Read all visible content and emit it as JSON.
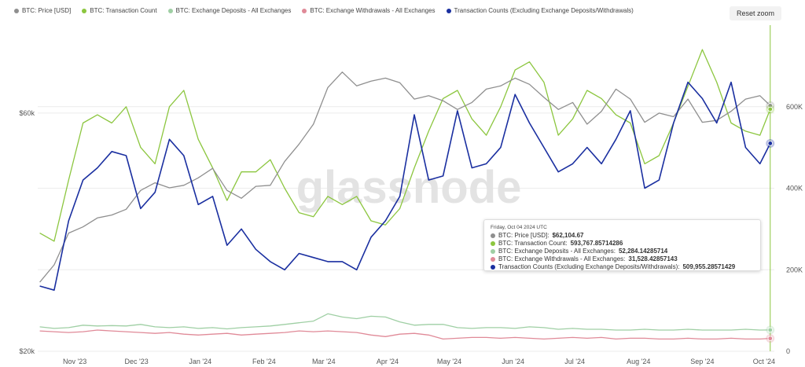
{
  "legend": [
    {
      "label": "BTC: Price [USD]",
      "color": "#8f8f8f"
    },
    {
      "label": "BTC: Transaction Count",
      "color": "#8cc63f"
    },
    {
      "label": "BTC: Exchange Deposits - All Exchanges",
      "color": "#9fcfa4"
    },
    {
      "label": "BTC: Exchange Withdrawals - All Exchanges",
      "color": "#e08a98"
    },
    {
      "label": "Transaction Counts (Excluding Exchange Deposits/Withdrawals)",
      "color": "#1a2fa0"
    }
  ],
  "reset_zoom": "Reset zoom",
  "watermark": "glassnode",
  "tooltip": {
    "date": "Friday, Oct 04 2024 UTC",
    "rows": [
      {
        "label": "BTC: Price [USD]:",
        "value": "$62,104.67",
        "color": "#8f8f8f"
      },
      {
        "label": "BTC: Transaction Count:",
        "value": "593,767.85714286",
        "color": "#8cc63f"
      },
      {
        "label": "BTC: Exchange Deposits - All Exchanges:",
        "value": "52,284.14285714",
        "color": "#9fcfa4"
      },
      {
        "label": "BTC: Exchange Withdrawals - All Exchanges:",
        "value": "31,528.42857143",
        "color": "#e08a98"
      },
      {
        "label": "Transaction Counts (Excluding Exchange Deposits/Withdrawals):",
        "value": "509,955.28571429",
        "color": "#1a2fa0"
      }
    ]
  },
  "chart_data": {
    "type": "line",
    "x": [
      "2023-10-15",
      "2023-10-22",
      "2023-10-29",
      "2023-11-05",
      "2023-11-12",
      "2023-11-19",
      "2023-11-26",
      "2023-12-03",
      "2023-12-10",
      "2023-12-17",
      "2023-12-24",
      "2023-12-31",
      "2024-01-07",
      "2024-01-14",
      "2024-01-21",
      "2024-01-28",
      "2024-02-04",
      "2024-02-11",
      "2024-02-18",
      "2024-02-25",
      "2024-03-03",
      "2024-03-10",
      "2024-03-17",
      "2024-03-24",
      "2024-03-31",
      "2024-04-07",
      "2024-04-14",
      "2024-04-21",
      "2024-04-28",
      "2024-05-05",
      "2024-05-12",
      "2024-05-19",
      "2024-05-26",
      "2024-06-02",
      "2024-06-09",
      "2024-06-16",
      "2024-06-23",
      "2024-06-30",
      "2024-07-07",
      "2024-07-14",
      "2024-07-21",
      "2024-07-28",
      "2024-08-04",
      "2024-08-11",
      "2024-08-18",
      "2024-08-25",
      "2024-09-01",
      "2024-09-08",
      "2024-09-15",
      "2024-09-22",
      "2024-09-29",
      "2024-10-04"
    ],
    "x_ticks": [
      "Nov '23",
      "Dec '23",
      "Jan '24",
      "Feb '24",
      "Mar '24",
      "Apr '24",
      "May '24",
      "Jun '24",
      "Jul '24",
      "Aug '24",
      "Sep '24",
      "Oct '24"
    ],
    "y_left": {
      "ticks": [
        "$20k",
        "$60k"
      ],
      "scale": "log",
      "range": [
        20000,
        90000
      ]
    },
    "y_right": {
      "ticks": [
        "0",
        "200K",
        "400K",
        "600K"
      ],
      "range": [
        0,
        800000
      ]
    },
    "grid": true,
    "legend_position": "top-left",
    "series": [
      {
        "name": "BTC: Price [USD]",
        "axis": "left",
        "color": "#8f8f8f",
        "values": [
          27500,
          29800,
          34500,
          35500,
          37000,
          37500,
          38500,
          42000,
          43500,
          42500,
          43000,
          44500,
          46500,
          42000,
          40500,
          42800,
          43000,
          48000,
          52000,
          57000,
          67500,
          72500,
          68000,
          69500,
          70500,
          69000,
          64000,
          65000,
          63500,
          61000,
          63000,
          67000,
          68000,
          70500,
          68500,
          64500,
          61000,
          63000,
          57000,
          60500,
          67000,
          64000,
          57500,
          60000,
          59000,
          64000,
          57500,
          58000,
          60500,
          64000,
          65000,
          62104.67
        ]
      },
      {
        "name": "BTC: Transaction Count",
        "axis": "right",
        "color": "#8cc63f",
        "values": [
          290000,
          270000,
          420000,
          560000,
          580000,
          560000,
          600000,
          500000,
          460000,
          600000,
          640000,
          520000,
          450000,
          370000,
          440000,
          440000,
          470000,
          400000,
          340000,
          330000,
          380000,
          360000,
          380000,
          320000,
          310000,
          350000,
          450000,
          540000,
          620000,
          640000,
          570000,
          530000,
          600000,
          690000,
          710000,
          660000,
          530000,
          570000,
          640000,
          620000,
          580000,
          560000,
          460000,
          480000,
          560000,
          650000,
          740000,
          660000,
          560000,
          540000,
          530000,
          593767.86
        ]
      },
      {
        "name": "BTC: Exchange Deposits - All Exchanges",
        "axis": "right",
        "color": "#9fcfa4",
        "values": [
          60000,
          56000,
          58000,
          64000,
          62000,
          63000,
          62000,
          66000,
          60000,
          58000,
          60000,
          56000,
          58000,
          55000,
          58000,
          60000,
          62000,
          66000,
          70000,
          74000,
          92000,
          84000,
          80000,
          86000,
          84000,
          72000,
          64000,
          66000,
          66000,
          58000,
          56000,
          58000,
          58000,
          56000,
          60000,
          58000,
          54000,
          56000,
          54000,
          54000,
          52000,
          52000,
          54000,
          52000,
          52000,
          54000,
          52000,
          52000,
          52000,
          54000,
          52000,
          52284.14
        ]
      },
      {
        "name": "BTC: Exchange Withdrawals - All Exchanges",
        "axis": "right",
        "color": "#e08a98",
        "values": [
          50000,
          48000,
          46000,
          48000,
          52000,
          50000,
          48000,
          46000,
          44000,
          46000,
          42000,
          40000,
          42000,
          44000,
          40000,
          42000,
          44000,
          46000,
          50000,
          48000,
          50000,
          48000,
          46000,
          40000,
          36000,
          42000,
          44000,
          40000,
          30000,
          32000,
          34000,
          34000,
          32000,
          34000,
          32000,
          30000,
          32000,
          34000,
          32000,
          34000,
          30000,
          32000,
          32000,
          30000,
          30000,
          32000,
          30000,
          30000,
          32000,
          30000,
          30000,
          31528.43
        ]
      },
      {
        "name": "Transaction Counts (Excluding Exchange Deposits/Withdrawals)",
        "axis": "right",
        "color": "#1a2fa0",
        "values": [
          160000,
          150000,
          320000,
          420000,
          450000,
          490000,
          480000,
          350000,
          390000,
          520000,
          480000,
          360000,
          380000,
          260000,
          300000,
          250000,
          220000,
          200000,
          240000,
          230000,
          220000,
          220000,
          200000,
          280000,
          320000,
          380000,
          580000,
          420000,
          430000,
          590000,
          450000,
          460000,
          500000,
          630000,
          560000,
          500000,
          440000,
          460000,
          500000,
          460000,
          520000,
          590000,
          400000,
          420000,
          560000,
          660000,
          620000,
          560000,
          660000,
          500000,
          460000,
          509955.28
        ]
      }
    ]
  }
}
